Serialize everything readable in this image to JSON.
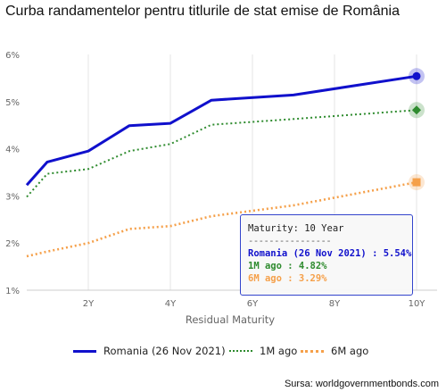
{
  "title": "Curba randamentelor pentru titlurile de stat emise de România",
  "source": "Sursa: worldgovernmentbonds.com",
  "chart_data": {
    "type": "line",
    "title": "Curba randamentelor pentru titlurile de stat emise de România",
    "xlabel": "Residual Maturity",
    "ylabel": "",
    "x_ticks": [
      {
        "value": 2,
        "label": "2Y"
      },
      {
        "value": 4,
        "label": "4Y"
      },
      {
        "value": 6,
        "label": "6Y"
      },
      {
        "value": 8,
        "label": "8Y"
      },
      {
        "value": 10,
        "label": "10Y"
      }
    ],
    "y_ticks": [
      {
        "value": 1,
        "label": "1%"
      },
      {
        "value": 2,
        "label": "2%"
      },
      {
        "value": 3,
        "label": "3%"
      },
      {
        "value": 4,
        "label": "4%"
      },
      {
        "value": 5,
        "label": "5%"
      },
      {
        "value": 6,
        "label": "6%"
      }
    ],
    "xlim": [
      0.5,
      10.5
    ],
    "ylim": [
      1,
      6
    ],
    "grid": "vertical",
    "legend_position": "bottom",
    "series": [
      {
        "name": "Romania (26 Nov 2021)",
        "color": "#1010cc",
        "style": "solid",
        "marker": "circle",
        "points": [
          [
            0.5,
            3.23
          ],
          [
            1,
            3.72
          ],
          [
            2,
            3.95
          ],
          [
            3,
            4.49
          ],
          [
            4,
            4.54
          ],
          [
            5,
            5.03
          ],
          [
            7,
            5.14
          ],
          [
            10,
            5.54
          ]
        ]
      },
      {
        "name": "1M ago",
        "color": "#2e8b2e",
        "style": "dotted",
        "marker": "diamond",
        "points": [
          [
            0.5,
            2.98
          ],
          [
            1,
            3.47
          ],
          [
            2,
            3.57
          ],
          [
            3,
            3.95
          ],
          [
            4,
            4.1
          ],
          [
            5,
            4.51
          ],
          [
            7,
            4.63
          ],
          [
            10,
            4.82
          ]
        ]
      },
      {
        "name": "6M ago",
        "color": "#f5a04a",
        "style": "dotted",
        "marker": "square",
        "points": [
          [
            0.5,
            1.72
          ],
          [
            1,
            1.82
          ],
          [
            2,
            2.0
          ],
          [
            3,
            2.3
          ],
          [
            4,
            2.36
          ],
          [
            5,
            2.57
          ],
          [
            7,
            2.8
          ],
          [
            10,
            3.29
          ]
        ]
      }
    ],
    "tooltip": {
      "title": "Maturity: 10 Year",
      "separator": "----------------",
      "lines": [
        "Romania (26 Nov 2021) : 5.54%",
        "1M ago : 4.82%",
        "6M ago : 3.29%"
      ]
    }
  }
}
